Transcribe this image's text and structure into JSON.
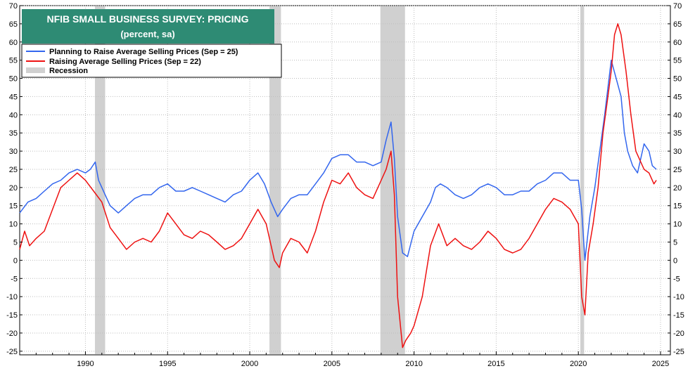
{
  "chart_data": {
    "type": "line",
    "title": "NFIB SMALL BUSINESS SURVEY: PRICING",
    "subtitle": "(percent, sa)",
    "xlabel": "",
    "ylabel": "",
    "xlim": [
      1986,
      2025.6
    ],
    "ylim": [
      -26,
      70
    ],
    "x_ticks": [
      1990,
      1995,
      2000,
      2005,
      2010,
      2015,
      2020,
      2025
    ],
    "y_ticks": [
      -25,
      -20,
      -15,
      -10,
      -5,
      0,
      5,
      10,
      15,
      20,
      25,
      30,
      35,
      40,
      45,
      50,
      55,
      60,
      65,
      70
    ],
    "grid": true,
    "legend_position": "top-left",
    "colors": {
      "planning": "#3366ee",
      "raising": "#ee1111",
      "recession": "#d0d0d0",
      "title_box": "#2e8b74"
    },
    "recessions": [
      {
        "start": 1990.58,
        "end": 1991.2
      },
      {
        "start": 2001.2,
        "end": 2001.9
      },
      {
        "start": 2007.95,
        "end": 2009.45
      },
      {
        "start": 2020.12,
        "end": 2020.35
      }
    ],
    "series": [
      {
        "name": "Planning to Raise Average Selling Prices  (Sep = 25)",
        "key": "planning",
        "x": [
          1986.0,
          1986.5,
          1987.0,
          1987.5,
          1988.0,
          1988.5,
          1989.0,
          1989.5,
          1990.0,
          1990.3,
          1990.6,
          1990.8,
          1991.0,
          1991.5,
          1992.0,
          1992.5,
          1993.0,
          1993.5,
          1994.0,
          1994.5,
          1995.0,
          1995.5,
          1996.0,
          1996.5,
          1997.0,
          1997.5,
          1998.0,
          1998.5,
          1999.0,
          1999.5,
          2000.0,
          2000.5,
          2000.9,
          2001.3,
          2001.7,
          2002.0,
          2002.5,
          2003.0,
          2003.5,
          2004.0,
          2004.5,
          2005.0,
          2005.5,
          2006.0,
          2006.5,
          2007.0,
          2007.5,
          2008.0,
          2008.3,
          2008.6,
          2008.8,
          2009.0,
          2009.3,
          2009.6,
          2010.0,
          2010.5,
          2011.0,
          2011.3,
          2011.6,
          2012.0,
          2012.5,
          2013.0,
          2013.5,
          2014.0,
          2014.5,
          2015.0,
          2015.5,
          2016.0,
          2016.5,
          2017.0,
          2017.5,
          2018.0,
          2018.5,
          2019.0,
          2019.5,
          2020.0,
          2020.2,
          2020.4,
          2020.7,
          2021.0,
          2021.3,
          2021.6,
          2022.0,
          2022.3,
          2022.6,
          2022.8,
          2023.0,
          2023.3,
          2023.6,
          2024.0,
          2024.3,
          2024.5,
          2024.75
        ],
        "values": [
          13,
          16,
          17,
          19,
          21,
          22,
          24,
          25,
          24,
          25,
          27,
          22,
          20,
          15,
          13,
          15,
          17,
          18,
          18,
          20,
          21,
          19,
          19,
          20,
          19,
          18,
          17,
          16,
          18,
          19,
          22,
          24,
          21,
          16,
          12,
          14,
          17,
          18,
          18,
          21,
          24,
          28,
          29,
          29,
          27,
          27,
          26,
          27,
          33,
          38,
          28,
          12,
          2,
          1,
          8,
          12,
          16,
          20,
          21,
          20,
          18,
          17,
          18,
          20,
          21,
          20,
          18,
          18,
          19,
          19,
          21,
          22,
          24,
          24,
          22,
          22,
          14,
          0,
          12,
          20,
          30,
          40,
          55,
          50,
          45,
          35,
          30,
          26,
          24,
          32,
          30,
          26,
          25
        ]
      },
      {
        "name": "Raising Average Selling Prices (Sep = 22)",
        "key": "raising",
        "x": [
          1986.0,
          1986.3,
          1986.6,
          1987.0,
          1987.5,
          1988.0,
          1988.5,
          1989.0,
          1989.5,
          1990.0,
          1990.5,
          1991.0,
          1991.5,
          1992.0,
          1992.5,
          1993.0,
          1993.5,
          1994.0,
          1994.5,
          1995.0,
          1995.5,
          1996.0,
          1996.5,
          1997.0,
          1997.5,
          1998.0,
          1998.5,
          1999.0,
          1999.5,
          2000.0,
          2000.5,
          2001.0,
          2001.5,
          2001.8,
          2002.0,
          2002.5,
          2003.0,
          2003.5,
          2004.0,
          2004.5,
          2005.0,
          2005.5,
          2006.0,
          2006.5,
          2007.0,
          2007.5,
          2008.0,
          2008.3,
          2008.6,
          2008.8,
          2009.0,
          2009.3,
          2009.5,
          2009.8,
          2010.0,
          2010.5,
          2011.0,
          2011.5,
          2012.0,
          2012.5,
          2013.0,
          2013.5,
          2014.0,
          2014.5,
          2015.0,
          2015.5,
          2016.0,
          2016.5,
          2017.0,
          2017.5,
          2018.0,
          2018.5,
          2019.0,
          2019.5,
          2020.0,
          2020.2,
          2020.4,
          2020.6,
          2020.9,
          2021.2,
          2021.5,
          2021.8,
          2022.0,
          2022.2,
          2022.4,
          2022.6,
          2022.9,
          2023.2,
          2023.5,
          2024.0,
          2024.3,
          2024.6,
          2024.75
        ],
        "values": [
          3,
          8,
          4,
          6,
          8,
          14,
          20,
          22,
          24,
          22,
          19,
          16,
          9,
          6,
          3,
          5,
          6,
          5,
          8,
          13,
          10,
          7,
          6,
          8,
          7,
          5,
          3,
          4,
          6,
          10,
          14,
          10,
          0,
          -2,
          2,
          6,
          5,
          2,
          8,
          16,
          22,
          21,
          24,
          20,
          18,
          17,
          22,
          25,
          30,
          18,
          -10,
          -24,
          -22,
          -20,
          -18,
          -10,
          4,
          10,
          4,
          6,
          4,
          3,
          5,
          8,
          6,
          3,
          2,
          3,
          6,
          10,
          14,
          17,
          16,
          14,
          10,
          -10,
          -15,
          2,
          10,
          20,
          35,
          45,
          52,
          62,
          65,
          62,
          52,
          40,
          30,
          25,
          24,
          21,
          22
        ]
      }
    ],
    "legend": {
      "planning": "Planning to Raise Average Selling Prices  (Sep = 25)",
      "raising": "Raising Average Selling Prices (Sep = 22)",
      "recession": "Recession"
    }
  }
}
